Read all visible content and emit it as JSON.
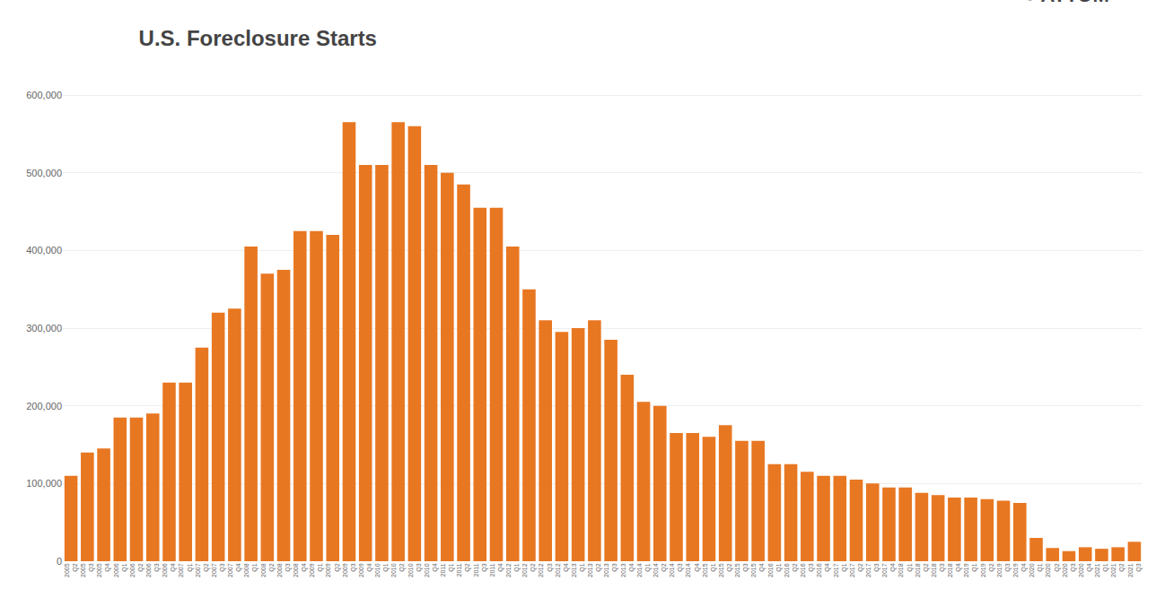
{
  "chart_data": {
    "type": "bar",
    "title": "U.S. Foreclosure Starts",
    "annotations": [
      "●",
      "ATTOM",
      "™"
    ],
    "color": "#E87722",
    "grid": true,
    "ylim": [
      0,
      630000
    ],
    "yticks": [
      0,
      {
        "value": 100000,
        "label": "100,000"
      },
      {
        "value": 200000,
        "label": "200,000"
      },
      {
        "value": 300000,
        "label": "300,000"
      },
      {
        "value": 400000,
        "label": "400,000"
      },
      {
        "value": 500000,
        "label": "500,000"
      },
      {
        "value": 600000,
        "label": "600,000"
      }
    ],
    "categories": [
      "2005 Q2",
      "2005 Q3",
      "2005 Q4",
      "2006 Q1",
      "2006 Q2",
      "2006 Q3",
      "2006 Q4",
      "2007 Q1",
      "2007 Q2",
      "2007 Q3",
      "2007 Q4",
      "2008 Q1",
      "2008 Q2",
      "2008 Q3",
      "2008 Q4",
      "2009 Q1",
      "2009 Q2",
      "2009 Q3",
      "2009 Q4",
      "2010 Q1",
      "2010 Q2",
      "2010 Q3",
      "2010 Q4",
      "2011 Q1",
      "2011 Q2",
      "2011 Q3",
      "2011 Q4",
      "2012 Q1",
      "2012 Q2",
      "2012 Q3",
      "2012 Q4",
      "2013 Q1",
      "2013 Q2",
      "2013 Q3",
      "2013 Q4",
      "2014 Q1",
      "2014 Q2",
      "2014 Q3",
      "2014 Q4",
      "2015 Q1",
      "2015 Q2",
      "2015 Q3",
      "2015 Q4",
      "2016 Q1",
      "2016 Q2",
      "2016 Q3",
      "2016 Q4",
      "2017 Q1",
      "2017 Q2",
      "2017 Q3",
      "2017 Q4",
      "2018 Q1",
      "2018 Q2",
      "2018 Q3",
      "2018 Q4",
      "2019 Q1",
      "2019 Q2",
      "2019 Q3",
      "2019 Q4",
      "2020 Q1",
      "2020 Q2",
      "2020 Q3",
      "2020 Q4",
      "2021 Q1",
      "2021 Q2",
      "2021 Q3"
    ],
    "values": [
      110000,
      140000,
      145000,
      185000,
      185000,
      190000,
      230000,
      230000,
      275000,
      320000,
      325000,
      405000,
      370000,
      375000,
      425000,
      425000,
      420000,
      565000,
      510000,
      510000,
      565000,
      560000,
      510000,
      500000,
      485000,
      455000,
      455000,
      405000,
      350000,
      310000,
      295000,
      300000,
      310000,
      285000,
      240000,
      205000,
      200000,
      165000,
      165000,
      160000,
      175000,
      155000,
      155000,
      125000,
      125000,
      115000,
      110000,
      110000,
      105000,
      100000,
      95000,
      95000,
      88000,
      85000,
      82000,
      82000,
      80000,
      78000,
      75000,
      30000,
      17000,
      13000,
      18000,
      16000,
      18000,
      25000
    ]
  }
}
